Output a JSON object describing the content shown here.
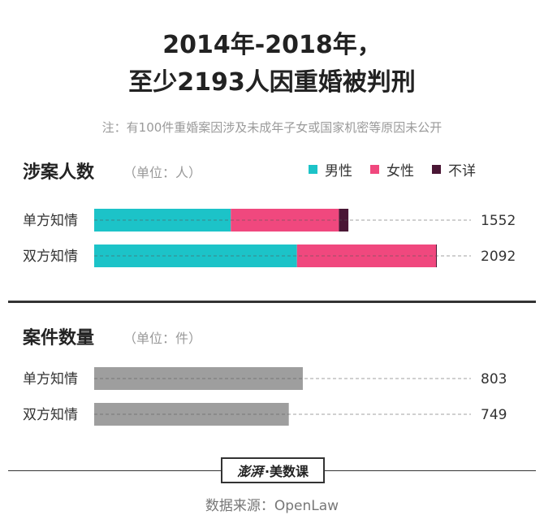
{
  "title_line1": "2014年-2018年，",
  "title_line2": "至少2193人因重婚被判刑",
  "note": "注：有100件重婚案因涉及未成年子女或国家机密等原因未公开",
  "footer": {
    "brand": "澎湃",
    "channel": "·美数课",
    "source": "数据来源：OpenLaw"
  },
  "chart_data": [
    {
      "type": "bar",
      "orientation": "horizontal",
      "stacked": true,
      "title": "涉案人数",
      "unit": "（单位：人）",
      "categories": [
        "单方知情",
        "双方知情"
      ],
      "series": [
        {
          "name": "男性",
          "color": "#1cc3c8",
          "values": [
            834,
            1238
          ]
        },
        {
          "name": "女性",
          "color": "#f0487e",
          "values": [
            660,
            849
          ]
        },
        {
          "name": "不详",
          "color": "#4a1635",
          "values": [
            58,
            5
          ]
        }
      ],
      "totals": [
        1552,
        2092
      ],
      "xlim": [
        0,
        2300
      ],
      "legend": "top-right"
    },
    {
      "type": "bar",
      "orientation": "horizontal",
      "title": "案件数量",
      "unit": "（单位：件）",
      "categories": [
        "单方知情",
        "双方知情"
      ],
      "color": "#9e9e9e",
      "values": [
        803,
        749
      ],
      "xlim": [
        0,
        1450
      ]
    }
  ]
}
